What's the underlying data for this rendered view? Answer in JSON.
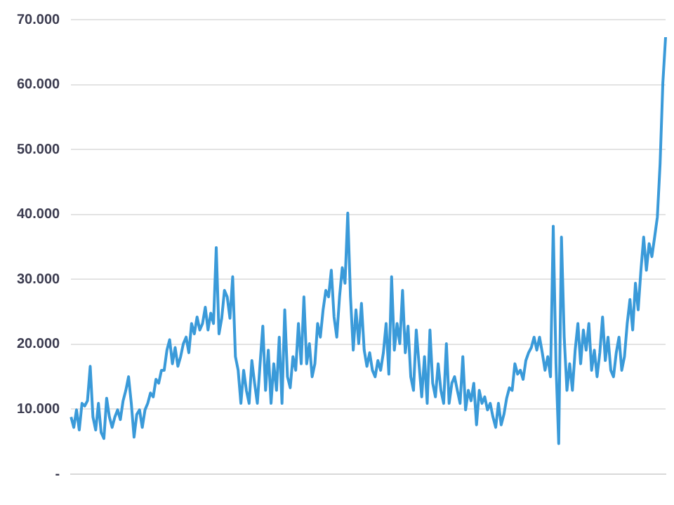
{
  "chart_data": {
    "type": "line",
    "categories": [
      null,
      null,
      null,
      null,
      null,
      null,
      null,
      null,
      null,
      null,
      null,
      null,
      null,
      null,
      null,
      null,
      null,
      null,
      null,
      null,
      null,
      null,
      null,
      null,
      null,
      null,
      null,
      null,
      null,
      null,
      null,
      null,
      null,
      null,
      null,
      null,
      null,
      null,
      null,
      null,
      null,
      null,
      null,
      null,
      null,
      null,
      null,
      null,
      null,
      null,
      null,
      null,
      null,
      null,
      null,
      null,
      null,
      null,
      null,
      null,
      null,
      null,
      null,
      null,
      null,
      null,
      null,
      null,
      null,
      null,
      null,
      null,
      null,
      null,
      null,
      null,
      null,
      null,
      null,
      null,
      null,
      null,
      null,
      null,
      null,
      null,
      null,
      null,
      null,
      null,
      null,
      null,
      null,
      null,
      null,
      null,
      null,
      null,
      null,
      null,
      null,
      null,
      null,
      null,
      null,
      null,
      null,
      null,
      null,
      null,
      null,
      null,
      null,
      null,
      null,
      null,
      null,
      null,
      null,
      null,
      null,
      null,
      null,
      null,
      null,
      null,
      null,
      null,
      null,
      null,
      null,
      null,
      null,
      null,
      null,
      null,
      null,
      null,
      null,
      null,
      null,
      null,
      null,
      null,
      null,
      null,
      null,
      null,
      null,
      null,
      null,
      null,
      null,
      null,
      null,
      null,
      null,
      null,
      null,
      null,
      null,
      null,
      null,
      null,
      null,
      null,
      null,
      null,
      null,
      null,
      null,
      null,
      null,
      null,
      null,
      null,
      null,
      null,
      null,
      null,
      null,
      null,
      null,
      null,
      null,
      null,
      null,
      null,
      null,
      null,
      null,
      null,
      null,
      null,
      null,
      null,
      null,
      null,
      null,
      null,
      null,
      null,
      null,
      null,
      null,
      null,
      null,
      null,
      null,
      null,
      null,
      null,
      null,
      null,
      null,
      null,
      null,
      null
    ],
    "series": [
      {
        "color": "#3a9ad9",
        "values": [
          8800,
          7200,
          9900,
          6800,
          10900,
          10500,
          11300,
          16600,
          8800,
          6800,
          10900,
          6400,
          5500,
          11700,
          8800,
          7200,
          8800,
          9900,
          8400,
          11300,
          12900,
          15000,
          10900,
          5700,
          9200,
          9900,
          7200,
          9900,
          10900,
          12500,
          11900,
          14600,
          14000,
          16000,
          16000,
          19100,
          20700,
          17000,
          19500,
          16600,
          18100,
          20100,
          21100,
          18700,
          23200,
          21600,
          24200,
          22200,
          23200,
          25700,
          22200,
          24800,
          23200,
          34900,
          21600,
          24000,
          28300,
          27300,
          24000,
          30400,
          18100,
          16000,
          10900,
          16000,
          12900,
          10900,
          17500,
          14000,
          10900,
          17000,
          22800,
          12900,
          19100,
          10900,
          17000,
          12900,
          21100,
          10900,
          25300,
          15000,
          13300,
          18100,
          16000,
          23200,
          17000,
          27300,
          17000,
          20100,
          15000,
          17000,
          23200,
          21100,
          25300,
          28300,
          27300,
          31400,
          24200,
          21100,
          27300,
          31800,
          29400,
          40200,
          27300,
          19100,
          25300,
          20100,
          26300,
          19100,
          16600,
          18700,
          16000,
          15000,
          17500,
          16000,
          18700,
          23200,
          15400,
          30400,
          19100,
          23200,
          20100,
          28300,
          18700,
          22800,
          15000,
          12900,
          22200,
          17000,
          11900,
          18100,
          10900,
          22200,
          14000,
          11900,
          17000,
          12900,
          10900,
          20100,
          10900,
          14000,
          15000,
          12900,
          10900,
          18100,
          9900,
          12900,
          11300,
          14000,
          7600,
          12900,
          10900,
          11900,
          9900,
          10900,
          8800,
          7200,
          10900,
          7600,
          9200,
          11700,
          13300,
          12900,
          17000,
          15400,
          16000,
          14600,
          17500,
          18700,
          19500,
          21100,
          19100,
          21100,
          18700,
          16000,
          18100,
          15000,
          38200,
          17000,
          4700,
          36500,
          21100,
          12900,
          17000,
          12900,
          19100,
          23200,
          17000,
          22200,
          19100,
          23200,
          16000,
          19100,
          15000,
          18700,
          24200,
          17500,
          21100,
          16000,
          15000,
          18700,
          21100,
          16000,
          18100,
          23200,
          26900,
          22200,
          29400,
          25300,
          31400,
          36500,
          31400,
          35500,
          33500,
          36500,
          39600,
          47800,
          60200,
          67300
        ]
      }
    ],
    "ylim": [
      0,
      70000
    ],
    "yticks": [
      {
        "value": 0,
        "label": "-"
      },
      {
        "value": 10000,
        "label": "10.000"
      },
      {
        "value": 20000,
        "label": "20.000"
      },
      {
        "value": 30000,
        "label": "30.000"
      },
      {
        "value": 40000,
        "label": "40.000"
      },
      {
        "value": 50000,
        "label": "50.000"
      },
      {
        "value": 60000,
        "label": "60.000"
      },
      {
        "value": 70000,
        "label": "70.000"
      }
    ],
    "grid": "y",
    "tick_labels": "y"
  }
}
